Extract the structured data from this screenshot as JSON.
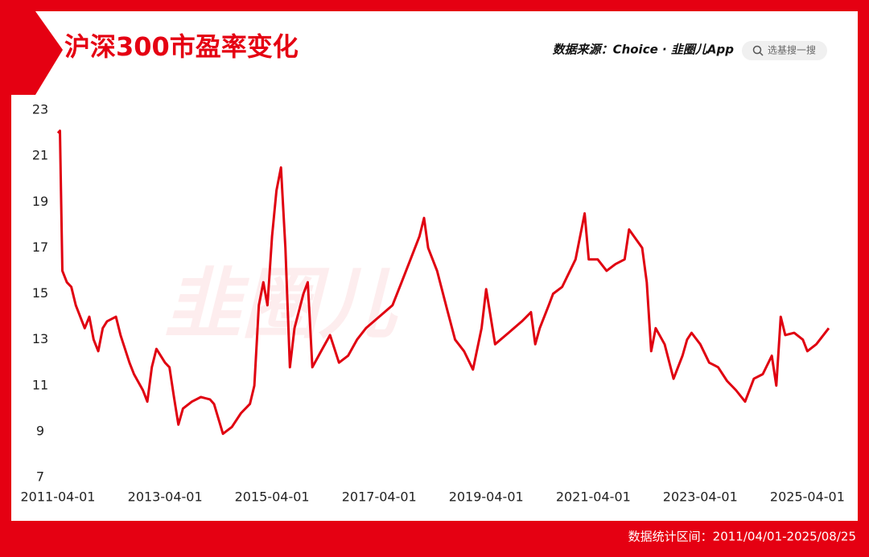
{
  "header": {
    "source": "数据来源：Choice · 韭圈儿App",
    "search": "选基搜一搜"
  },
  "footer": "数据统计区间：2011/04/01-2025/08/25",
  "watermark": "韭圈儿",
  "chart_data": {
    "type": "line",
    "title": "沪深300市盈率变化",
    "color": "#e00010",
    "xlim": [
      "2011-04-01",
      "2025-08-25"
    ],
    "xticks": [
      "2011-04-01",
      "2013-04-01",
      "2015-04-01",
      "2017-04-01",
      "2019-04-01",
      "2021-04-01",
      "2023-04-01",
      "2025-04-01"
    ],
    "ylim": [
      7,
      23
    ],
    "yticks": [
      7,
      9,
      11,
      13,
      15,
      17,
      19,
      21,
      23
    ],
    "x": [
      "2011-04-01",
      "2011-04-15",
      "2011-05-01",
      "2011-06-01",
      "2011-07-01",
      "2011-08-01",
      "2011-10-01",
      "2011-11-01",
      "2011-12-01",
      "2012-01-01",
      "2012-02-01",
      "2012-03-01",
      "2012-05-01",
      "2012-06-01",
      "2012-08-01",
      "2012-09-01",
      "2012-11-01",
      "2012-12-01",
      "2013-01-01",
      "2013-02-01",
      "2013-04-01",
      "2013-05-01",
      "2013-06-01",
      "2013-07-01",
      "2013-08-01",
      "2013-10-01",
      "2013-12-01",
      "2014-02-01",
      "2014-03-01",
      "2014-05-01",
      "2014-07-01",
      "2014-09-01",
      "2014-11-01",
      "2014-12-01",
      "2015-01-01",
      "2015-02-01",
      "2015-03-01",
      "2015-04-01",
      "2015-05-01",
      "2015-06-01",
      "2015-07-01",
      "2015-08-01",
      "2015-09-01",
      "2015-11-01",
      "2015-12-01",
      "2016-01-01",
      "2016-03-01",
      "2016-05-01",
      "2016-07-01",
      "2016-09-01",
      "2016-11-01",
      "2017-01-01",
      "2017-04-01",
      "2017-07-01",
      "2017-09-01",
      "2017-11-01",
      "2018-01-01",
      "2018-02-01",
      "2018-03-01",
      "2018-05-01",
      "2018-07-01",
      "2018-09-01",
      "2018-11-01",
      "2019-01-01",
      "2019-03-01",
      "2019-04-01",
      "2019-06-01",
      "2019-09-01",
      "2019-12-01",
      "2020-02-01",
      "2020-03-01",
      "2020-04-01",
      "2020-06-01",
      "2020-07-01",
      "2020-09-01",
      "2020-12-01",
      "2021-02-01",
      "2021-03-01",
      "2021-05-01",
      "2021-07-01",
      "2021-09-01",
      "2021-11-01",
      "2021-12-01",
      "2022-03-01",
      "2022-04-01",
      "2022-05-01",
      "2022-06-01",
      "2022-08-01",
      "2022-10-01",
      "2022-12-01",
      "2023-01-01",
      "2023-02-01",
      "2023-04-01",
      "2023-06-01",
      "2023-08-01",
      "2023-10-01",
      "2023-12-01",
      "2024-02-01",
      "2024-04-01",
      "2024-06-01",
      "2024-08-01",
      "2024-09-01",
      "2024-10-01",
      "2024-11-01",
      "2025-01-01",
      "2025-03-01",
      "2025-04-01",
      "2025-06-01",
      "2025-08-25"
    ],
    "values": [
      22.0,
      22.1,
      16.0,
      15.5,
      15.3,
      14.5,
      13.5,
      14.0,
      13.0,
      12.5,
      13.5,
      13.8,
      14.0,
      13.2,
      12.0,
      11.5,
      10.8,
      10.3,
      11.8,
      12.6,
      12.0,
      11.8,
      10.5,
      9.3,
      10.0,
      10.3,
      10.5,
      10.4,
      10.2,
      8.9,
      9.2,
      9.8,
      10.2,
      11.0,
      14.5,
      15.5,
      14.5,
      17.5,
      19.5,
      20.5,
      17.0,
      11.8,
      13.5,
      15.0,
      15.5,
      11.8,
      12.5,
      13.2,
      12.0,
      12.3,
      13.0,
      13.5,
      14.0,
      14.5,
      15.5,
      16.5,
      17.5,
      18.3,
      17.0,
      16.0,
      14.5,
      13.0,
      12.5,
      11.7,
      13.5,
      15.2,
      12.8,
      13.3,
      13.8,
      14.2,
      12.8,
      13.5,
      14.5,
      15.0,
      15.3,
      16.5,
      18.5,
      16.5,
      16.5,
      16.0,
      16.3,
      16.5,
      17.8,
      17.0,
      15.5,
      12.5,
      13.5,
      12.8,
      11.3,
      12.3,
      13.0,
      13.3,
      12.8,
      12.0,
      11.8,
      11.2,
      10.8,
      10.3,
      11.3,
      11.5,
      12.3,
      11.0,
      14.0,
      13.2,
      13.3,
      13.0,
      12.5,
      12.8,
      13.5
    ]
  }
}
